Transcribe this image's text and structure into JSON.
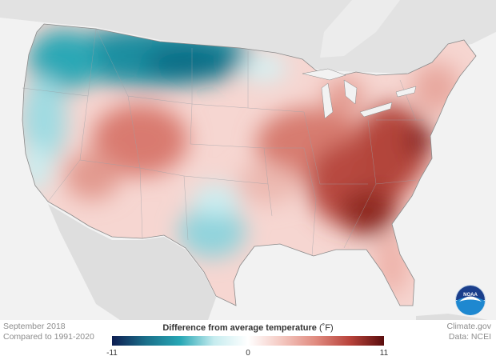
{
  "footer": {
    "date": "September 2018",
    "comparison": "Compared to 1991-2020",
    "source": "Climate.gov",
    "data_credit": "Data: NCEI"
  },
  "legend": {
    "title": "Difference from average temperature",
    "unit": "(˚F)",
    "min_label": "-11",
    "mid_label": "0",
    "max_label": "11",
    "min": -11,
    "max": 11,
    "colors": [
      "#0e1e52",
      "#1b6f8a",
      "#27a7b5",
      "#c6ecef",
      "#ffffff",
      "#f4c7c0",
      "#e08a7f",
      "#b8433b",
      "#5a0d0d"
    ]
  },
  "logo": {
    "text": "NOAA",
    "color": "#0a5aa5"
  },
  "map": {
    "background": "#f2f2f2",
    "land_outside": "#dadada",
    "anomaly_regions": [
      {
        "name": "northern-rockies-plains",
        "anomaly": -7
      },
      {
        "name": "pacific-northwest",
        "anomaly": -5
      },
      {
        "name": "northern-california",
        "anomaly": -3
      },
      {
        "name": "central-texas",
        "anomaly": -3
      },
      {
        "name": "southwest",
        "anomaly": 3
      },
      {
        "name": "central-rockies",
        "anomaly": 4
      },
      {
        "name": "midwest",
        "anomaly": 4
      },
      {
        "name": "southeast",
        "anomaly": 7
      },
      {
        "name": "mid-atlantic",
        "anomaly": 8
      },
      {
        "name": "new-england",
        "anomaly": 4
      },
      {
        "name": "florida",
        "anomaly": 4
      }
    ]
  }
}
